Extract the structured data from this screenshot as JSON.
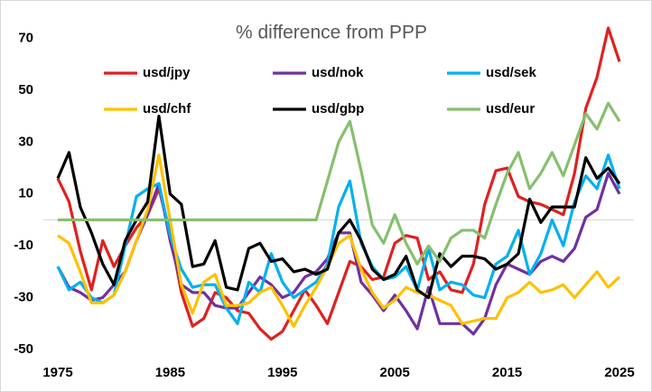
{
  "chart_data": {
    "type": "line",
    "title": "% difference from PPP",
    "x": [
      1975,
      1976,
      1977,
      1978,
      1979,
      1980,
      1981,
      1982,
      1983,
      1984,
      1985,
      1986,
      1987,
      1988,
      1989,
      1990,
      1991,
      1992,
      1993,
      1994,
      1995,
      1996,
      1997,
      1998,
      1999,
      2000,
      2001,
      2002,
      2003,
      2004,
      2005,
      2006,
      2007,
      2008,
      2009,
      2010,
      2011,
      2012,
      2013,
      2014,
      2015,
      2016,
      2017,
      2018,
      2019,
      2020,
      2021,
      2022,
      2023,
      2024,
      2025
    ],
    "series": [
      {
        "name": "usd/jpy",
        "color": "#e0201f",
        "values": [
          16,
          7,
          -12,
          -27,
          -8,
          -18,
          -10,
          -3,
          2,
          12,
          -5,
          -28,
          -41,
          -38,
          -28,
          -30,
          -35,
          -36,
          -42,
          -46,
          -43,
          -35,
          -27,
          -33,
          -40,
          -28,
          -16,
          -18,
          -23,
          -22,
          -9,
          -6,
          -7,
          -23,
          -20,
          -27,
          -28,
          -17,
          6,
          19,
          20,
          9,
          7,
          6,
          4,
          2,
          18,
          43,
          55,
          74,
          61
        ]
      },
      {
        "name": "usd/nok",
        "color": "#7030a0",
        "values": [
          -18,
          -26,
          -28,
          -31,
          -30,
          -25,
          -20,
          -8,
          2,
          14,
          -8,
          -25,
          -28,
          -28,
          -33,
          -34,
          -34,
          -28,
          -22,
          -25,
          -30,
          -28,
          -22,
          -20,
          -15,
          -5,
          -5,
          -24,
          -29,
          -35,
          -29,
          -35,
          -42,
          -26,
          -40,
          -40,
          -40,
          -44,
          -38,
          -25,
          -17,
          -19,
          -21,
          -16,
          -14,
          -16,
          -11,
          1,
          4,
          18,
          10
        ]
      },
      {
        "name": "usd/sek",
        "color": "#00b0f0",
        "values": [
          -18,
          -27,
          -24,
          -30,
          -32,
          -29,
          -10,
          9,
          12,
          14,
          -6,
          -19,
          -26,
          -25,
          -25,
          -34,
          -40,
          -24,
          -28,
          -13,
          -24,
          -30,
          -27,
          -24,
          -17,
          5,
          15,
          -9,
          -18,
          -23,
          -22,
          -18,
          -27,
          -11,
          -27,
          -24,
          -25,
          -29,
          -30,
          -17,
          -14,
          -4,
          -21,
          -13,
          0,
          -10,
          7,
          17,
          12,
          25,
          12
        ]
      },
      {
        "name": "usd/chf",
        "color": "#ffc000",
        "values": [
          -6,
          -9,
          -20,
          -32,
          -32,
          -29,
          -20,
          -8,
          4,
          25,
          0,
          -25,
          -36,
          -24,
          -21,
          -33,
          -33,
          -32,
          -28,
          -26,
          -33,
          -41,
          -33,
          -26,
          -18,
          -9,
          -6,
          -19,
          -28,
          -34,
          -31,
          -26,
          -28,
          -29,
          -31,
          -33,
          -40,
          -39,
          -38,
          -38,
          -30,
          -28,
          -24,
          -28,
          -27,
          -25,
          -30,
          -25,
          -20,
          -26,
          -22
        ]
      },
      {
        "name": "usd/gbp",
        "color": "#000000",
        "values": [
          16,
          26,
          5,
          -5,
          -17,
          -25,
          -8,
          0,
          7,
          40,
          10,
          6,
          -18,
          -17,
          -8,
          -26,
          -27,
          -11,
          -9,
          -16,
          -15,
          -20,
          -19,
          -21,
          -19,
          -5,
          0,
          -8,
          -19,
          -23,
          -21,
          -14,
          -27,
          -30,
          -13,
          -18,
          -14,
          -14,
          -15,
          -19,
          -17,
          -13,
          8,
          -1,
          5,
          5,
          5,
          24,
          16,
          20,
          14
        ]
      },
      {
        "name": "usd/eur",
        "color": "#86bf6e",
        "values": [
          0,
          0,
          0,
          0,
          0,
          0,
          0,
          0,
          0,
          0,
          0,
          0,
          0,
          0,
          0,
          0,
          0,
          0,
          0,
          0,
          0,
          0,
          0,
          0,
          15,
          30,
          38,
          19,
          -2,
          -9,
          2,
          -9,
          -17,
          -10,
          -16,
          -7,
          -4,
          -4,
          -7,
          6,
          18,
          26,
          12,
          18,
          26,
          17,
          29,
          41,
          35,
          45,
          38
        ]
      }
    ],
    "xlim": [
      1975,
      2025
    ],
    "xticks": [
      1975,
      1985,
      1995,
      2005,
      2015,
      2025
    ],
    "ylim": [
      -58,
      82
    ],
    "yticks": [
      -50,
      -30,
      -10,
      10,
      30,
      50,
      70
    ],
    "zero_line": true,
    "legend": "top"
  }
}
